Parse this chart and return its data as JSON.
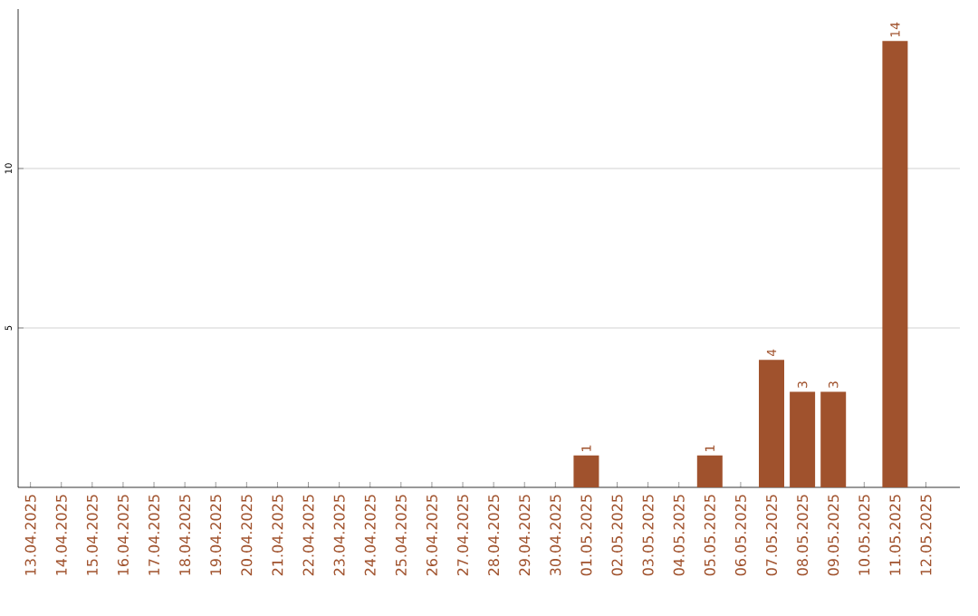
{
  "chart_data": {
    "type": "bar",
    "categories": [
      "13.04.2025",
      "14.04.2025",
      "15.04.2025",
      "16.04.2025",
      "17.04.2025",
      "18.04.2025",
      "19.04.2025",
      "20.04.2025",
      "21.04.2025",
      "22.04.2025",
      "23.04.2025",
      "24.04.2025",
      "25.04.2025",
      "26.04.2025",
      "27.04.2025",
      "28.04.2025",
      "29.04.2025",
      "30.04.2025",
      "01.05.2025",
      "02.05.2025",
      "03.05.2025",
      "04.05.2025",
      "05.05.2025",
      "06.05.2025",
      "07.05.2025",
      "08.05.2025",
      "09.05.2025",
      "10.05.2025",
      "11.05.2025",
      "12.05.2025"
    ],
    "values": [
      0,
      0,
      0,
      0,
      0,
      0,
      0,
      0,
      0,
      0,
      0,
      0,
      0,
      0,
      0,
      0,
      0,
      0,
      1,
      0,
      0,
      0,
      1,
      0,
      4,
      3,
      3,
      0,
      14,
      0
    ],
    "value_labels": [
      null,
      null,
      null,
      null,
      null,
      null,
      null,
      null,
      null,
      null,
      null,
      null,
      null,
      null,
      null,
      null,
      null,
      null,
      "1",
      null,
      null,
      null,
      "1",
      null,
      "4",
      "3",
      "3",
      null,
      "14",
      null
    ],
    "color": "#a0522d",
    "ylim": [
      0,
      15
    ],
    "yticks": [
      5,
      10
    ],
    "grid": "y"
  }
}
